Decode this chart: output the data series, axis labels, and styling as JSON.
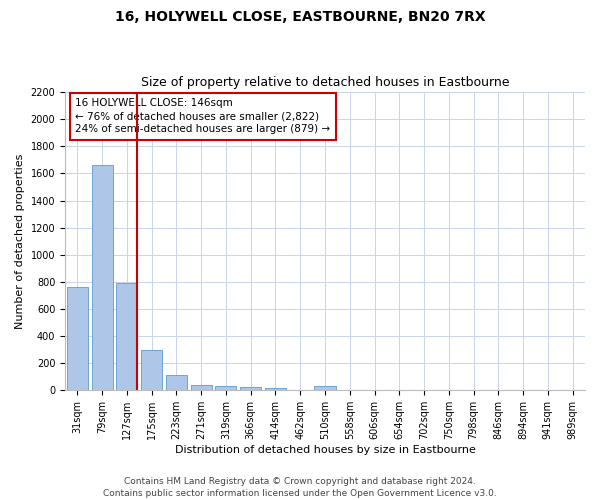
{
  "title": "16, HOLYWELL CLOSE, EASTBOURNE, BN20 7RX",
  "subtitle": "Size of property relative to detached houses in Eastbourne",
  "xlabel": "Distribution of detached houses by size in Eastbourne",
  "ylabel": "Number of detached properties",
  "bar_categories": [
    "31sqm",
    "79sqm",
    "127sqm",
    "175sqm",
    "223sqm",
    "271sqm",
    "319sqm",
    "366sqm",
    "414sqm",
    "462sqm",
    "510sqm",
    "558sqm",
    "606sqm",
    "654sqm",
    "702sqm",
    "750sqm",
    "798sqm",
    "846sqm",
    "894sqm",
    "941sqm",
    "989sqm"
  ],
  "bar_values": [
    760,
    1665,
    795,
    300,
    110,
    40,
    35,
    22,
    20,
    0,
    30,
    0,
    0,
    0,
    0,
    0,
    0,
    0,
    0,
    0,
    0
  ],
  "bar_color": "#aec6e8",
  "bar_edge_color": "#5b9bd5",
  "vline_x_index": 2,
  "vline_color": "#cc0000",
  "annotation_text": "16 HOLYWELL CLOSE: 146sqm\n← 76% of detached houses are smaller (2,822)\n24% of semi-detached houses are larger (879) →",
  "annotation_box_color": "#ffffff",
  "annotation_box_edgecolor": "#cc0000",
  "ylim": [
    0,
    2200
  ],
  "yticks": [
    0,
    200,
    400,
    600,
    800,
    1000,
    1200,
    1400,
    1600,
    1800,
    2000,
    2200
  ],
  "footnote_line1": "Contains HM Land Registry data © Crown copyright and database right 2024.",
  "footnote_line2": "Contains public sector information licensed under the Open Government Licence v3.0.",
  "bg_color": "#ffffff",
  "grid_color": "#c8d4e8",
  "title_fontsize": 10,
  "subtitle_fontsize": 9,
  "label_fontsize": 8,
  "tick_fontsize": 7,
  "annotation_fontsize": 7.5,
  "footnote_fontsize": 6.5
}
